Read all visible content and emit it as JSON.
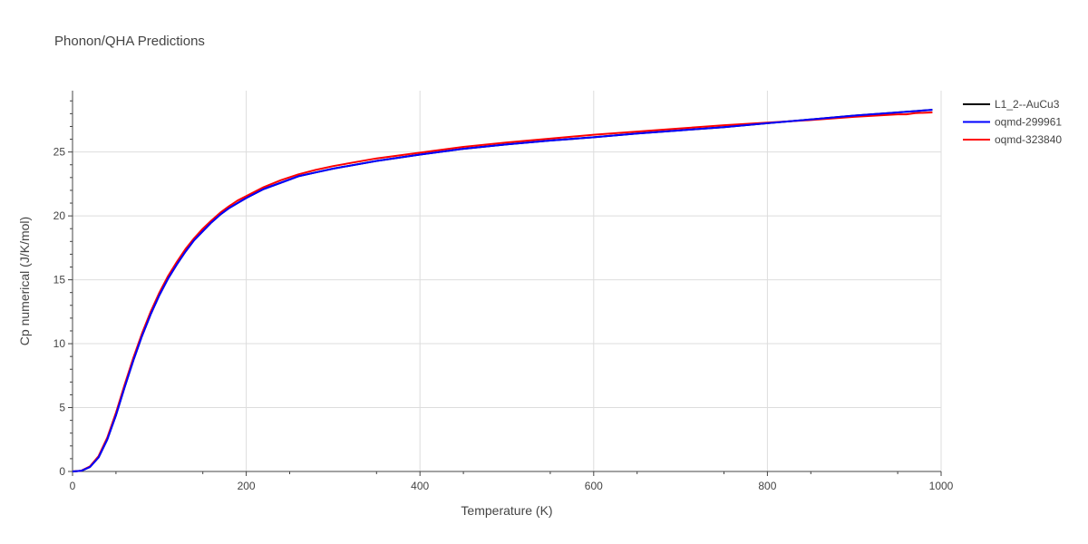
{
  "chart_data": {
    "type": "line",
    "title": "Phonon/QHA Predictions",
    "xlabel": "Temperature (K)",
    "ylabel": "Cp numerical (J/K/mol)",
    "xlim": [
      0,
      1000
    ],
    "ylim": [
      0,
      29.8
    ],
    "xticks": [
      0,
      200,
      400,
      600,
      800,
      1000
    ],
    "yticks": [
      0,
      5,
      10,
      15,
      20,
      25
    ],
    "grid": true,
    "legend_position": "top-right",
    "series": [
      {
        "name": "L1_2--AuCu3",
        "color": "#000000",
        "x": [
          0,
          10,
          20,
          30,
          40,
          50,
          60,
          70,
          80,
          90,
          100,
          110,
          120,
          130,
          140,
          150,
          160,
          170,
          180,
          190,
          200,
          220,
          240,
          260,
          280,
          300,
          350,
          400,
          450,
          500,
          550,
          600,
          650,
          700,
          750,
          800,
          850,
          900,
          950,
          990
        ],
        "y": [
          0,
          0.05,
          0.35,
          1.1,
          2.5,
          4.4,
          6.6,
          8.7,
          10.6,
          12.3,
          13.8,
          15.1,
          16.2,
          17.2,
          18.1,
          18.8,
          19.5,
          20.1,
          20.6,
          21.0,
          21.4,
          22.1,
          22.6,
          23.1,
          23.4,
          23.7,
          24.3,
          24.8,
          25.25,
          25.6,
          25.9,
          26.15,
          26.45,
          26.7,
          26.95,
          27.25,
          27.55,
          27.85,
          28.1,
          28.3
        ]
      },
      {
        "name": "oqmd-299961",
        "color": "#0000ff",
        "x": [
          0,
          10,
          20,
          30,
          40,
          50,
          60,
          70,
          80,
          90,
          100,
          110,
          120,
          130,
          140,
          150,
          160,
          170,
          180,
          190,
          200,
          220,
          240,
          260,
          280,
          300,
          350,
          400,
          450,
          500,
          550,
          600,
          650,
          700,
          750,
          800,
          850,
          900,
          950,
          990
        ],
        "y": [
          0,
          0.05,
          0.35,
          1.1,
          2.5,
          4.4,
          6.6,
          8.7,
          10.6,
          12.3,
          13.8,
          15.1,
          16.2,
          17.2,
          18.1,
          18.8,
          19.5,
          20.1,
          20.6,
          21.0,
          21.4,
          22.1,
          22.6,
          23.1,
          23.4,
          23.7,
          24.3,
          24.8,
          25.25,
          25.6,
          25.9,
          26.15,
          26.45,
          26.7,
          26.95,
          27.25,
          27.55,
          27.85,
          28.1,
          28.3
        ]
      },
      {
        "name": "oqmd-323840",
        "color": "#ff0000",
        "x": [
          0,
          10,
          20,
          30,
          40,
          50,
          60,
          70,
          80,
          90,
          100,
          110,
          120,
          130,
          140,
          150,
          160,
          170,
          180,
          190,
          200,
          220,
          240,
          260,
          280,
          300,
          350,
          400,
          450,
          500,
          550,
          600,
          650,
          700,
          750,
          800,
          850,
          900,
          950,
          960,
          970,
          990
        ],
        "y": [
          0,
          0.06,
          0.4,
          1.2,
          2.65,
          4.6,
          6.8,
          8.9,
          10.8,
          12.5,
          14.0,
          15.3,
          16.4,
          17.4,
          18.25,
          19.0,
          19.65,
          20.25,
          20.75,
          21.2,
          21.55,
          22.25,
          22.8,
          23.25,
          23.6,
          23.9,
          24.5,
          24.95,
          25.4,
          25.75,
          26.05,
          26.35,
          26.6,
          26.85,
          27.1,
          27.3,
          27.5,
          27.75,
          27.95,
          27.95,
          28.05,
          28.1
        ]
      }
    ]
  }
}
